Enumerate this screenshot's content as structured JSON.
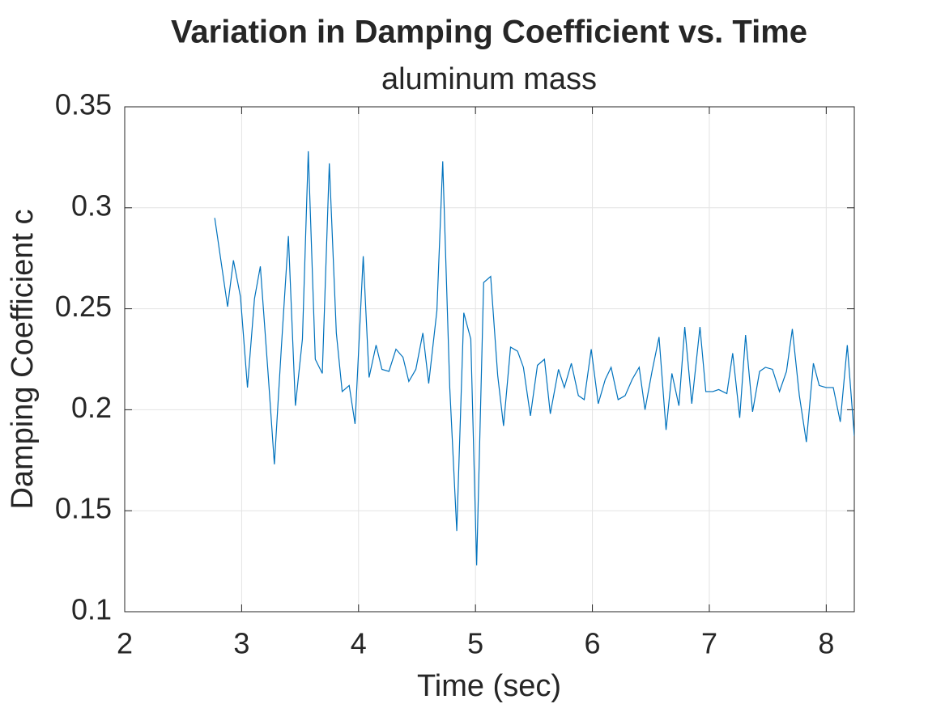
{
  "chart_data": {
    "type": "line",
    "title": "Variation in Damping Coefficient vs. Time",
    "subtitle": "aluminum mass",
    "x_label": "Time (sec)",
    "y_label": "Damping Coefficient c",
    "x": [
      2.77,
      2.88,
      2.93,
      2.99,
      3.05,
      3.11,
      3.16,
      3.23,
      3.28,
      3.34,
      3.4,
      3.46,
      3.52,
      3.57,
      3.63,
      3.69,
      3.75,
      3.81,
      3.86,
      3.92,
      3.97,
      4.04,
      4.09,
      4.15,
      4.2,
      4.26,
      4.32,
      4.38,
      4.43,
      4.49,
      4.55,
      4.6,
      4.67,
      4.72,
      4.78,
      4.84,
      4.9,
      4.96,
      5.01,
      5.07,
      5.13,
      5.19,
      5.24,
      5.3,
      5.36,
      5.41,
      5.47,
      5.53,
      5.59,
      5.64,
      5.71,
      5.76,
      5.82,
      5.88,
      5.93,
      5.99,
      6.05,
      6.11,
      6.16,
      6.22,
      6.28,
      6.34,
      6.4,
      6.45,
      6.51,
      6.57,
      6.63,
      6.68,
      6.74,
      6.79,
      6.85,
      6.92,
      6.97,
      7.03,
      7.08,
      7.15,
      7.2,
      7.26,
      7.31,
      7.37,
      7.43,
      7.48,
      7.54,
      7.6,
      7.66,
      7.71,
      7.77,
      7.83,
      7.89,
      7.94,
      8.0,
      8.06,
      8.12,
      8.18,
      8.24
    ],
    "series": [
      {
        "name": "c",
        "color": "#0072bd",
        "values": [
          0.295,
          0.251,
          0.274,
          0.256,
          0.211,
          0.255,
          0.271,
          0.215,
          0.173,
          0.231,
          0.286,
          0.202,
          0.235,
          0.328,
          0.225,
          0.218,
          0.322,
          0.238,
          0.209,
          0.212,
          0.193,
          0.276,
          0.216,
          0.232,
          0.22,
          0.219,
          0.23,
          0.226,
          0.214,
          0.22,
          0.238,
          0.213,
          0.249,
          0.323,
          0.211,
          0.14,
          0.248,
          0.235,
          0.123,
          0.263,
          0.266,
          0.217,
          0.192,
          0.231,
          0.229,
          0.221,
          0.197,
          0.222,
          0.225,
          0.198,
          0.22,
          0.211,
          0.223,
          0.207,
          0.205,
          0.23,
          0.203,
          0.215,
          0.221,
          0.205,
          0.207,
          0.215,
          0.221,
          0.2,
          0.219,
          0.236,
          0.19,
          0.218,
          0.202,
          0.241,
          0.203,
          0.241,
          0.209,
          0.209,
          0.21,
          0.208,
          0.228,
          0.196,
          0.237,
          0.199,
          0.219,
          0.221,
          0.22,
          0.209,
          0.219,
          0.24,
          0.207,
          0.184,
          0.223,
          0.212,
          0.211,
          0.211,
          0.194,
          0.232,
          0.187
        ]
      }
    ],
    "xlim": [
      2,
      8.24
    ],
    "ylim": [
      0.1,
      0.35
    ],
    "xticks": [
      2,
      3,
      4,
      5,
      6,
      7,
      8
    ],
    "yticks": [
      0.1,
      0.15,
      0.2,
      0.25,
      0.3,
      0.35
    ],
    "grid": true
  }
}
